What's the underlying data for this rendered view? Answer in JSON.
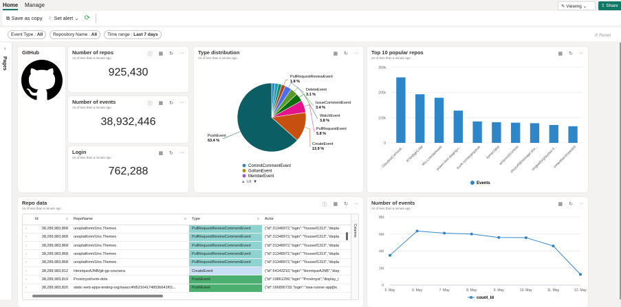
{
  "tabs": [
    "Home",
    "Manage"
  ],
  "toolbar": {
    "save_copy": "Save as copy",
    "set_alert": "Set alert",
    "viewing": "Viewing",
    "share": "Share",
    "reset": "Reset"
  },
  "filters": [
    {
      "label": "Event Type : ",
      "value": "All"
    },
    {
      "label": "Repository Name : ",
      "value": "All"
    },
    {
      "label": "Time range : ",
      "value": "Last 7 days"
    }
  ],
  "pages_label": "Pages",
  "subtitle": "As of less than a minute ago",
  "github": {
    "title": "GitHub"
  },
  "kpis": [
    {
      "title": "Number of repos",
      "value": "925,430"
    },
    {
      "title": "Number of events",
      "value": "38,932,446"
    },
    {
      "title": "Login",
      "value": "762,288"
    }
  ],
  "colors": {
    "accent": "#117865",
    "bar": "#2e86c9",
    "line": "#2e86c9"
  },
  "chart_data": [
    {
      "type": "pie",
      "title": "Type distribution",
      "slices": [
        {
          "name": "CommitCommentEvent",
          "value": 1.6,
          "color": "#2e86c9",
          "label": false
        },
        {
          "name": "GollumEvent",
          "value": 1.6,
          "color": "#1a9bb0",
          "label": false
        },
        {
          "name": "MemberEvent",
          "value": 1.6,
          "color": "#0f8f70",
          "label": false
        },
        {
          "name": "PullRequestReviewEvent",
          "value": 1.8,
          "color": "#b5451b",
          "label": "1.8 %"
        },
        {
          "name": "DeleteEvent",
          "value": 3.1,
          "color": "#4a6ef0",
          "label": "3.1 %"
        },
        {
          "name": "IssueCommentEvent",
          "value": 3.4,
          "color": "#5a9a2a",
          "label": "3.4 %"
        },
        {
          "name": "WatchEvent",
          "value": 3.8,
          "color": "#0a6e0a",
          "label": "3.8 %"
        },
        {
          "name": "PullRequestEvent",
          "value": 5.8,
          "color": "#e3148c",
          "label": "5.8 %"
        },
        {
          "name": "CreateEvent",
          "value": 13.9,
          "color": "#c7500f",
          "label": "13.9 %"
        },
        {
          "name": "PushEvent",
          "value": 63.4,
          "color": "#0b5e63",
          "label": "63.4 %"
        }
      ],
      "legend": [
        {
          "name": "CommitCommentEvent",
          "color": "#2e86c9"
        },
        {
          "name": "GollumEvent",
          "color": "#b8860b"
        },
        {
          "name": "MemberEvent",
          "color": "#9b59d0"
        }
      ],
      "legend_page": "1/8"
    },
    {
      "type": "bar",
      "title": "Top 10 popular repos",
      "categories": [
        "ClaudineCarnoult...",
        "874ABgt/CAM",
        "Mix-Link/darkweb",
        "prawn-test-staging-r...",
        "trunk-io/mergequeue",
        "kpnwc/qlist",
        "actavioid/commit",
        "shuyu456/storage-stor...",
        "singpatforg/docker-li...",
        "vimanthan3/seed03"
      ],
      "values": [
        260000,
        193000,
        179000,
        128000,
        85000,
        82000,
        80000,
        78000,
        71000,
        66000
      ],
      "ylim": [
        0,
        300000
      ],
      "yticks": [
        "0",
        "100k",
        "200k",
        "300k"
      ],
      "legend": "Events",
      "grid": true
    },
    {
      "type": "line",
      "title": "Number of events",
      "categories": [
        "5. May",
        "6. May",
        "7. May",
        "8. May",
        "9. May",
        "10. May",
        "11. May",
        "12. May"
      ],
      "values": [
        3500000,
        6350000,
        6100000,
        6000000,
        5600000,
        5570000,
        4600000,
        1250000
      ],
      "ylim": [
        0,
        8000000
      ],
      "yticks": [
        "0",
        "2M",
        "4M",
        "6M",
        "8M"
      ],
      "legend": "count_Id",
      "grid": true
    }
  ],
  "repo_data": {
    "title": "Repo data",
    "columns": [
      "Id",
      "RepoName",
      "Type",
      "Actor"
    ],
    "side_label": "Columns",
    "rows": [
      [
        "38,289,983,868",
        "unoplatform/Uno.Themes",
        "PullRequestReviewCommentEvent",
        "{\"id\":31348972,\"login\":\"Youssef1313\",\"displa"
      ],
      [
        "38,289,983,868",
        "unoplatform/Uno.Themes",
        "PullRequestReviewCommentEvent",
        "{\"id\":31348972,\"login\":\"Youssef1313\",\"displa"
      ],
      [
        "38,289,983,868",
        "unoplatform/Uno.Themes",
        "PullRequestReviewCommentEvent",
        "{\"id\":31348972,\"login\":\"Youssef1313\",\"displa"
      ],
      [
        "38,289,983,868",
        "unoplatform/Uno.Themes",
        "PullRequestReviewCommentEvent",
        "{\"id\":31348972,\"login\":\"Youssef1313\",\"displa"
      ],
      [
        "38,289,983,868",
        "unoplatform/Uno.Themes",
        "PullRequestReviewCommentEvent",
        "{\"id\":31348972,\"login\":\"Youssef1313\",\"displa"
      ],
      [
        "38,289,983,812",
        "HenriqueAJNB/git-gp-coursera",
        "CreateEvent",
        "{\"id\":54143210,\"login\":\"HenriqueAJNB\",\"disp"
      ],
      [
        "38,289,983,819",
        "Proximyst/nvim-dots",
        "PushEvent",
        "{\"id\":19861299,\"login\":\"Proximyst\",\"display_l"
      ],
      [
        "38,289,983,820",
        "static-web-apps-testing-org/swacc4fd52164174853b641f01...",
        "PushEvent",
        "{\"id\":166895733,\"login\":\"swa-runner-app[bc"
      ]
    ]
  }
}
